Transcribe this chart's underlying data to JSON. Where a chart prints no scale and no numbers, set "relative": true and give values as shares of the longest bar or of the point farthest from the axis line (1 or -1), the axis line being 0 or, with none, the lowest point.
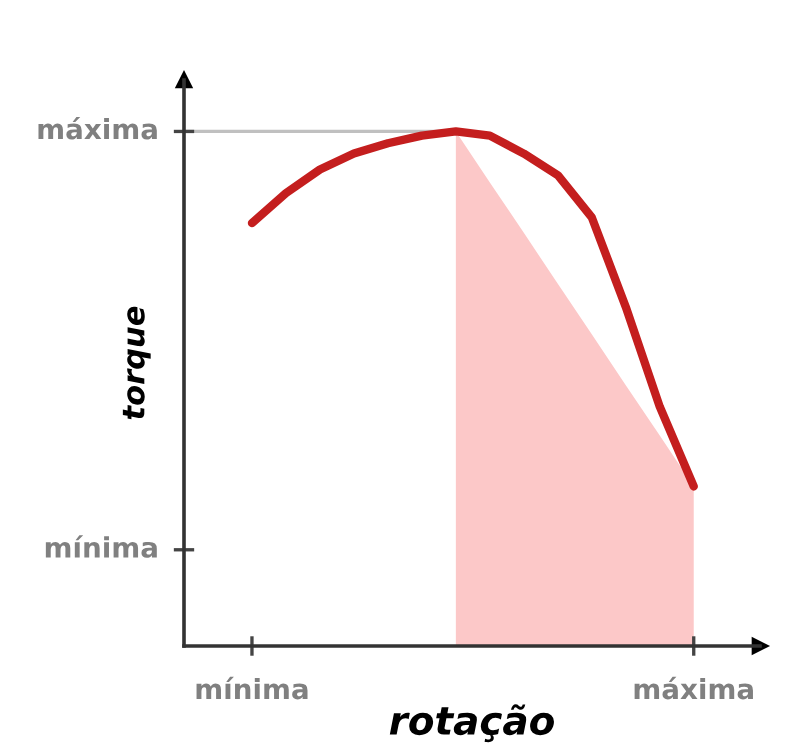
{
  "chart_data": {
    "type": "line",
    "relative": true,
    "xlabel": "rotação",
    "ylabel": "torque",
    "categories": [
      null,
      null,
      "mínima",
      null,
      null,
      null,
      null,
      null,
      null,
      null,
      null,
      null,
      null,
      null,
      null,
      "máxima"
    ],
    "annotations": [
      "mínima",
      "máxima"
    ],
    "series": [
      {
        "type": "area",
        "color": "#fcc8c8",
        "values": [
          null,
          null,
          null,
          null,
          null,
          null,
          null,
          null,
          1.0,
          0.901,
          0.803,
          0.704,
          0.606,
          0.507,
          0.409,
          0.31
        ]
      },
      {
        "color": "#c0c0c0",
        "values": [
          1.0,
          1.0,
          1.0,
          1.0,
          1.0,
          1.0,
          1.0,
          1.0,
          1.0,
          null,
          null,
          null,
          null,
          null,
          null,
          null
        ]
      },
      {
        "color": "#c41e1e",
        "values": [
          null,
          null,
          0.822,
          0.88,
          0.926,
          0.957,
          0.977,
          0.992,
          1.0,
          0.992,
          0.957,
          0.915,
          0.833,
          0.659,
          0.465,
          0.31
        ]
      }
    ]
  }
}
